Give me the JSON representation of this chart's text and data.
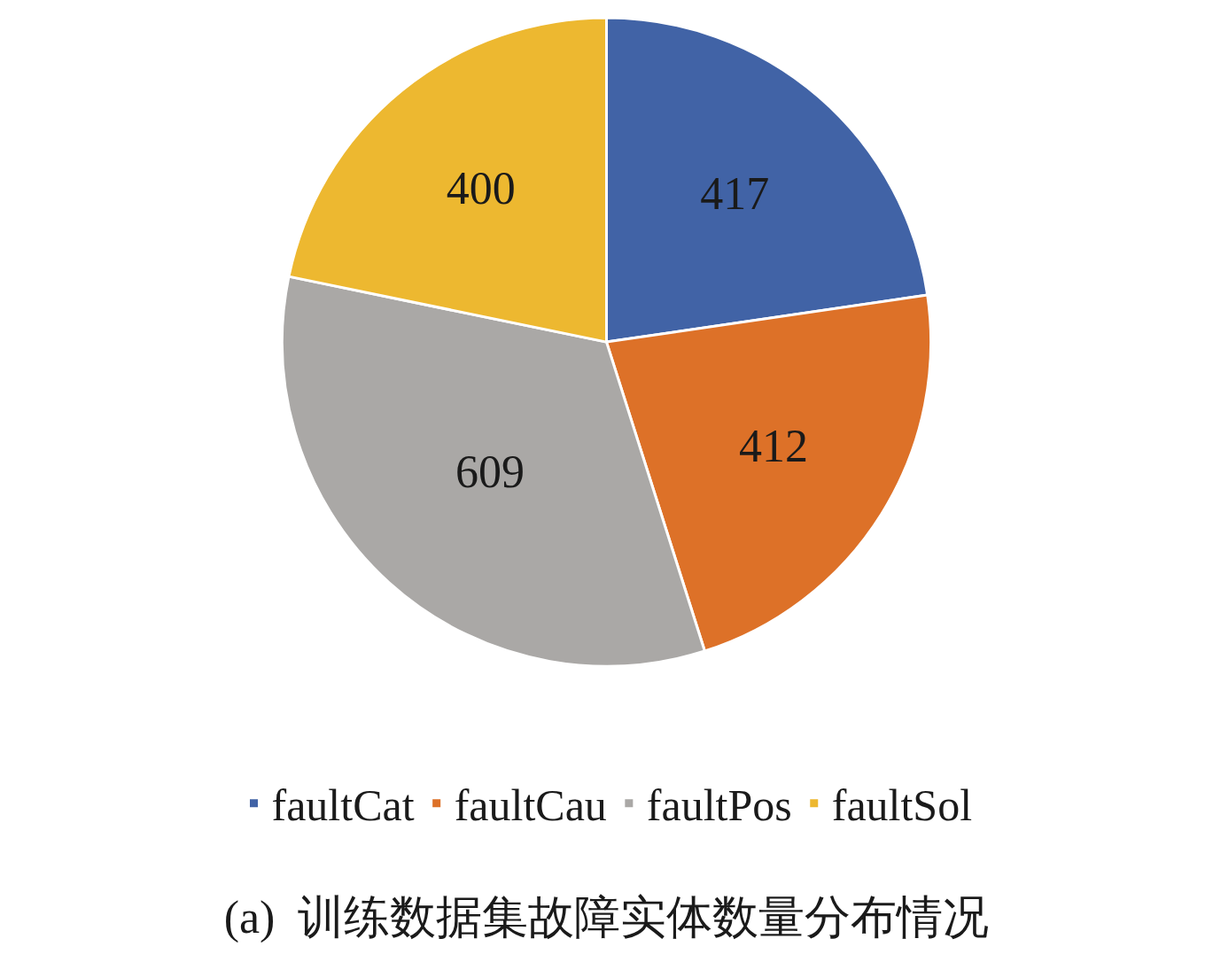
{
  "chart_data": {
    "type": "pie",
    "title": "(a)  训练数据集故障实体数量分布情况",
    "categories": [
      "faultCat",
      "faultCau",
      "faultPos",
      "faultSol"
    ],
    "values": [
      417,
      412,
      609,
      400
    ],
    "colors": [
      "#4163a6",
      "#dd7128",
      "#aaa8a6",
      "#edb830"
    ],
    "data_labels": true,
    "legend": "bottom"
  }
}
